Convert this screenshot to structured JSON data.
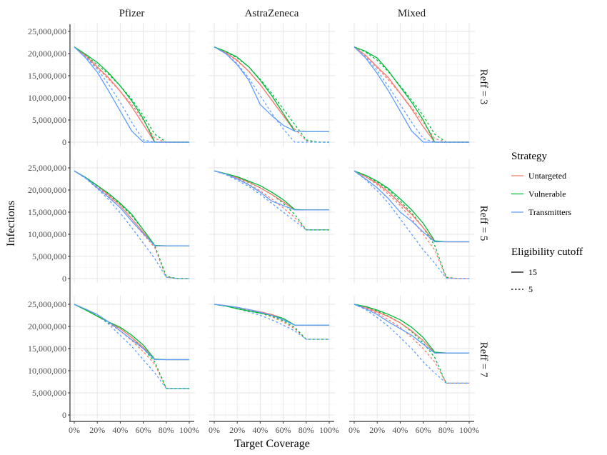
{
  "chart_data": {
    "type": "line",
    "xlabel": "Target Coverage",
    "ylabel": "Infections",
    "x": [
      0,
      10,
      20,
      30,
      40,
      50,
      60,
      70,
      80,
      90,
      100
    ],
    "xticks": [
      "0%",
      "20%",
      "40%",
      "60%",
      "80%",
      "100%"
    ],
    "yticks": [
      "0",
      "5,000,000",
      "10,000,000",
      "15,000,000",
      "20,000,000",
      "25,000,000"
    ],
    "ylim": [
      0,
      25000000
    ],
    "columns": [
      "Pfizer",
      "AstraZeneca",
      "Mixed"
    ],
    "rows": [
      "Reff = 3",
      "Reff = 5",
      "Reff = 7"
    ],
    "legend": {
      "position": "right",
      "strategy_title": "Strategy",
      "strategies": [
        {
          "name": "Untargeted",
          "color": "#F8766D"
        },
        {
          "name": "Vulnerable",
          "color": "#00BA38"
        },
        {
          "name": "Transmitters",
          "color": "#619CFF"
        }
      ],
      "cutoff_title": "Eligibility cutoff",
      "cutoffs": [
        {
          "name": "15",
          "dash": "solid"
        },
        {
          "name": "5",
          "dash": "dashed"
        }
      ]
    },
    "units": "millions",
    "panels": [
      {
        "row": 0,
        "col": 0,
        "series": {
          "Untargeted_15": [
            21.5,
            19.5,
            17,
            14.5,
            11.5,
            8,
            4,
            0,
            0,
            0,
            0
          ],
          "Vulnerable_15": [
            21.5,
            19.8,
            18,
            15.6,
            12.7,
            9.3,
            5.3,
            0,
            0,
            0,
            0
          ],
          "Transmitters_15": [
            21.5,
            19,
            15.8,
            11.5,
            7,
            2.5,
            0,
            0,
            0,
            0,
            0
          ],
          "Untargeted_5": [
            21.5,
            19.4,
            16.8,
            14.2,
            11.5,
            8.5,
            5,
            0.8,
            0,
            0,
            0
          ],
          "Vulnerable_5": [
            21.5,
            19.6,
            17.5,
            15.3,
            12.7,
            9.7,
            6,
            1.8,
            0,
            0,
            0
          ],
          "Transmitters_5": [
            21.5,
            19.2,
            16.5,
            13,
            9,
            4.5,
            0.5,
            0,
            0,
            0,
            0
          ]
        }
      },
      {
        "row": 0,
        "col": 1,
        "series": {
          "Untargeted_15": [
            21.5,
            20.2,
            18.5,
            16,
            13,
            9.5,
            6,
            2.5,
            2.4,
            2.4,
            2.4
          ],
          "Vulnerable_15": [
            21.5,
            20.5,
            19.2,
            17,
            14,
            10.5,
            6.5,
            2.5,
            2.4,
            2.4,
            2.4
          ],
          "Transmitters_15": [
            21.5,
            20,
            17.5,
            14,
            8.5,
            6,
            3.8,
            2.5,
            2.4,
            2.4,
            2.4
          ],
          "Untargeted_5": [
            21.5,
            20.2,
            18.3,
            16,
            13,
            9.5,
            6,
            3,
            0.3,
            0,
            0
          ],
          "Vulnerable_5": [
            21.5,
            20.4,
            19,
            17,
            14.2,
            11,
            7.5,
            4,
            0.5,
            0,
            0
          ],
          "Transmitters_5": [
            21.5,
            20,
            17.7,
            14.5,
            10.5,
            6.5,
            3,
            0,
            0,
            0,
            0
          ]
        }
      },
      {
        "row": 0,
        "col": 2,
        "series": {
          "Untargeted_15": [
            21.5,
            19.6,
            17,
            14.5,
            11,
            7.5,
            3.5,
            0,
            0,
            0,
            0
          ],
          "Vulnerable_15": [
            21.5,
            20.5,
            19,
            16,
            12.5,
            9,
            5,
            0,
            0,
            0,
            0
          ],
          "Transmitters_15": [
            21.5,
            19,
            15.5,
            11.5,
            7,
            2.5,
            0,
            0,
            0,
            0,
            0
          ],
          "Untargeted_5": [
            21.5,
            19.5,
            16.8,
            14,
            11,
            7.8,
            4.5,
            0.8,
            0,
            0,
            0
          ],
          "Vulnerable_5": [
            21.5,
            20.3,
            18.5,
            15.8,
            12.7,
            9.5,
            6,
            1.8,
            0,
            0,
            0
          ],
          "Transmitters_5": [
            21.5,
            19.2,
            16.2,
            12.5,
            8.5,
            4.5,
            0.8,
            0,
            0,
            0,
            0
          ]
        }
      },
      {
        "row": 1,
        "col": 0,
        "series": {
          "Untargeted_15": [
            24.3,
            22.8,
            21,
            18.8,
            16.5,
            13.5,
            10.5,
            7.4,
            7.4,
            7.4,
            7.4
          ],
          "Vulnerable_15": [
            24.3,
            22.8,
            21,
            19.2,
            17,
            14.5,
            11,
            7.5,
            7.4,
            7.4,
            7.4
          ],
          "Transmitters_15": [
            24.3,
            22.7,
            20.5,
            18.3,
            16,
            13,
            10.2,
            7.4,
            7.4,
            7.4,
            7.4
          ],
          "Untargeted_5": [
            24.3,
            22.8,
            20.8,
            18.5,
            16,
            13,
            10,
            7,
            0.3,
            0,
            0
          ],
          "Vulnerable_5": [
            24.3,
            22.8,
            21,
            19,
            16.8,
            14.2,
            11,
            7.5,
            0.5,
            0,
            0
          ],
          "Transmitters_5": [
            24.3,
            22.6,
            20.3,
            17.8,
            14.8,
            11.5,
            8,
            4.5,
            0.3,
            0,
            0
          ]
        }
      },
      {
        "row": 1,
        "col": 1,
        "series": {
          "Untargeted_15": [
            24.3,
            23.7,
            22.8,
            21.8,
            20.5,
            19,
            17.3,
            15.5,
            15.5,
            15.5,
            15.5
          ],
          "Vulnerable_15": [
            24.3,
            23.7,
            23,
            22,
            21,
            19.5,
            17.8,
            15.6,
            15.5,
            15.5,
            15.5
          ],
          "Transmitters_15": [
            24.3,
            23.6,
            22.5,
            21.2,
            19.5,
            17.5,
            16.5,
            15.5,
            15.5,
            15.5,
            15.5
          ],
          "Untargeted_5": [
            24.3,
            23.6,
            22.6,
            21.3,
            19.8,
            18,
            16,
            13.8,
            11,
            11,
            11
          ],
          "Vulnerable_5": [
            24.3,
            23.7,
            22.8,
            21.7,
            20.5,
            19,
            17,
            14.5,
            11,
            11,
            11
          ],
          "Transmitters_5": [
            24.3,
            23.5,
            22.2,
            20.8,
            19,
            17,
            15,
            13,
            11,
            11,
            11
          ]
        }
      },
      {
        "row": 1,
        "col": 2,
        "series": {
          "Untargeted_15": [
            24.3,
            23,
            21.5,
            19.5,
            17,
            14.5,
            11.5,
            8.3,
            8.3,
            8.3,
            8.3
          ],
          "Vulnerable_15": [
            24.3,
            23.3,
            22,
            20.3,
            18,
            15.5,
            12.5,
            8.5,
            8.3,
            8.3,
            8.3
          ],
          "Transmitters_15": [
            24.3,
            22.5,
            20.5,
            18,
            15,
            13,
            10.5,
            8.3,
            8.3,
            8.3,
            8.3
          ],
          "Untargeted_5": [
            24.3,
            23,
            21.2,
            19,
            16.5,
            13.5,
            10,
            6.5,
            0.2,
            0,
            0
          ],
          "Vulnerable_5": [
            24.3,
            23.3,
            21.8,
            20,
            17.5,
            14.8,
            11.5,
            7.5,
            0.3,
            0,
            0
          ],
          "Transmitters_5": [
            24.3,
            22.3,
            19.8,
            17,
            13.5,
            10,
            6.5,
            3.5,
            0.1,
            0,
            0
          ]
        }
      },
      {
        "row": 2,
        "col": 0,
        "series": {
          "Untargeted_15": [
            25,
            23.8,
            22.3,
            21,
            19.5,
            17.5,
            15.3,
            12.6,
            12.5,
            12.5,
            12.5
          ],
          "Vulnerable_15": [
            25,
            23.7,
            22.3,
            21,
            19.8,
            18,
            15.8,
            12.6,
            12.5,
            12.5,
            12.5
          ],
          "Transmitters_15": [
            25,
            23.9,
            22.7,
            21,
            19,
            17,
            15,
            12.5,
            12.5,
            12.5,
            12.5
          ],
          "Untargeted_5": [
            25,
            23.8,
            22.3,
            20.7,
            19,
            16.8,
            14.3,
            11.5,
            6,
            6,
            6
          ],
          "Vulnerable_5": [
            25,
            23.7,
            22.3,
            20.8,
            19.5,
            17.5,
            15,
            12,
            6,
            6,
            6
          ],
          "Transmitters_5": [
            25,
            23.9,
            22.5,
            20.5,
            18,
            15.5,
            12.5,
            9.5,
            6,
            6,
            6
          ]
        }
      },
      {
        "row": 2,
        "col": 1,
        "series": {
          "Untargeted_15": [
            25,
            24.7,
            24.3,
            23.8,
            23.3,
            22.7,
            21.8,
            20.3,
            20.3,
            20.3,
            20.3
          ],
          "Vulnerable_15": [
            25,
            24.6,
            24,
            23.5,
            23,
            22.5,
            21.8,
            20.3,
            20.3,
            20.3,
            20.3
          ],
          "Transmitters_15": [
            25,
            24.7,
            24.3,
            23.8,
            23.2,
            22.5,
            21.5,
            20.3,
            20.3,
            20.3,
            20.3
          ],
          "Untargeted_5": [
            25,
            24.6,
            24.2,
            23.6,
            23,
            22.2,
            21,
            19.5,
            17.1,
            17.1,
            17.1
          ],
          "Vulnerable_5": [
            25,
            24.6,
            24,
            23.5,
            23,
            22.3,
            21.3,
            19.8,
            17.1,
            17.1,
            17.1
          ],
          "Transmitters_5": [
            25,
            24.6,
            24,
            23.3,
            22.5,
            21.5,
            20.3,
            19,
            17.1,
            17.1,
            17.1
          ]
        }
      },
      {
        "row": 2,
        "col": 2,
        "series": {
          "Untargeted_15": [
            25,
            24.3,
            23.3,
            22.2,
            20.8,
            19,
            16.8,
            14,
            14,
            14,
            14
          ],
          "Vulnerable_15": [
            25,
            24.5,
            23.7,
            22.7,
            21.5,
            19.8,
            17.5,
            14.2,
            14,
            14,
            14
          ],
          "Transmitters_15": [
            25,
            24,
            22.7,
            21,
            19.5,
            18,
            16,
            14,
            14,
            14,
            14
          ],
          "Untargeted_5": [
            25,
            24.2,
            23,
            21.5,
            19.8,
            17.5,
            15,
            12,
            7.2,
            7.2,
            7.2
          ],
          "Vulnerable_5": [
            25,
            24.4,
            23.5,
            22.3,
            20.8,
            18.8,
            16.3,
            13,
            7.2,
            7.2,
            7.2
          ],
          "Transmitters_5": [
            25,
            23.8,
            22,
            20,
            17.5,
            15,
            12,
            9.5,
            7.2,
            7.2,
            7.2
          ]
        }
      }
    ]
  }
}
